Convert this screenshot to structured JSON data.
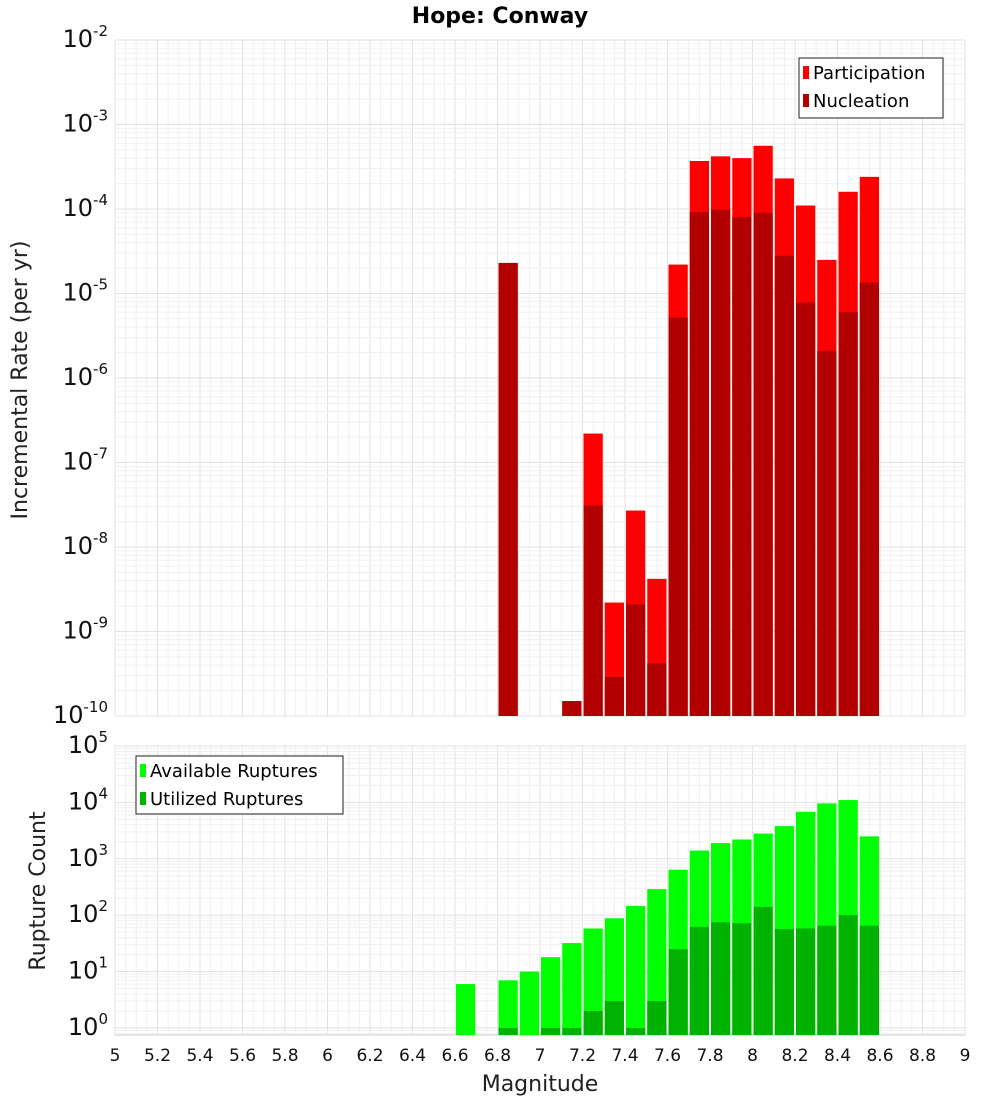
{
  "chart_data": [
    {
      "type": "bar",
      "title": "Hope: Conway",
      "xlabel": "Magnitude",
      "ylabel": "Incremental Rate (per yr)",
      "scale_y": "log",
      "xlim": [
        5,
        9
      ],
      "ylim": [
        1e-10,
        0.01
      ],
      "x_ticks": [
        "5",
        "5.2",
        "5.4",
        "5.6",
        "5.8",
        "6",
        "6.2",
        "6.4",
        "6.6",
        "6.8",
        "7",
        "7.2",
        "7.4",
        "7.6",
        "7.8",
        "8",
        "8.2",
        "8.4",
        "8.6",
        "8.8",
        "9"
      ],
      "y_tick_exponents": [
        "-10",
        "-9",
        "-8",
        "-7",
        "-6",
        "-5",
        "-4",
        "-3",
        "-2"
      ],
      "grid": true,
      "legend_position": "top-right",
      "bar_width": 0.1,
      "x": [
        6.85,
        7.15,
        7.25,
        7.35,
        7.45,
        7.55,
        7.65,
        7.75,
        7.85,
        7.95,
        8.05,
        8.15,
        8.25,
        8.35,
        8.45,
        8.55
      ],
      "series": [
        {
          "name": "Participation",
          "color": "#ff0000",
          "values": [
            2.3e-05,
            1.5e-10,
            2.2e-07,
            2.2e-09,
            2.7e-08,
            4.2e-09,
            2.2e-05,
            0.00037,
            0.00042,
            0.0004,
            0.00056,
            0.00023,
            0.00011,
            2.5e-05,
            0.00016,
            0.00024
          ]
        },
        {
          "name": "Nucleation",
          "color": "#b20000",
          "values": [
            2.3e-05,
            1.5e-10,
            3.1e-08,
            2.9e-10,
            2.1e-09,
            4.2e-10,
            5.2e-06,
            9.2e-05,
            9.8e-05,
            8e-05,
            9e-05,
            2.8e-05,
            7.8e-06,
            2.1e-06,
            6e-06,
            1.35e-05
          ]
        }
      ]
    },
    {
      "type": "bar",
      "title": "",
      "xlabel": "Magnitude",
      "ylabel": "Rupture Count",
      "scale_y": "log",
      "xlim": [
        5,
        9
      ],
      "ylim": [
        0.75,
        100000
      ],
      "x_ticks": [
        "5",
        "5.2",
        "5.4",
        "5.6",
        "5.8",
        "6",
        "6.2",
        "6.4",
        "6.6",
        "6.8",
        "7",
        "7.2",
        "7.4",
        "7.6",
        "7.8",
        "8",
        "8.2",
        "8.4",
        "8.6",
        "8.8",
        "9"
      ],
      "y_tick_exponents": [
        "0",
        "1",
        "2",
        "3",
        "4",
        "5"
      ],
      "grid": true,
      "legend_position": "top-left",
      "bar_width": 0.1,
      "x": [
        6.65,
        6.85,
        6.95,
        7.05,
        7.15,
        7.25,
        7.35,
        7.45,
        7.55,
        7.65,
        7.75,
        7.85,
        7.95,
        8.05,
        8.15,
        8.25,
        8.35,
        8.45,
        8.55
      ],
      "series": [
        {
          "name": "Available Ruptures",
          "color": "#00ff00",
          "values": [
            6,
            7,
            10,
            18,
            32,
            58,
            88,
            145,
            290,
            640,
            1400,
            1900,
            2200,
            2800,
            3800,
            6800,
            9600,
            11000,
            2500
          ]
        },
        {
          "name": "Utilized Ruptures",
          "color": "#00b200",
          "values": [
            0,
            1,
            0,
            1,
            1,
            2,
            3,
            1,
            3,
            25,
            62,
            75,
            72,
            140,
            57,
            58,
            65,
            100,
            65
          ]
        }
      ]
    }
  ]
}
